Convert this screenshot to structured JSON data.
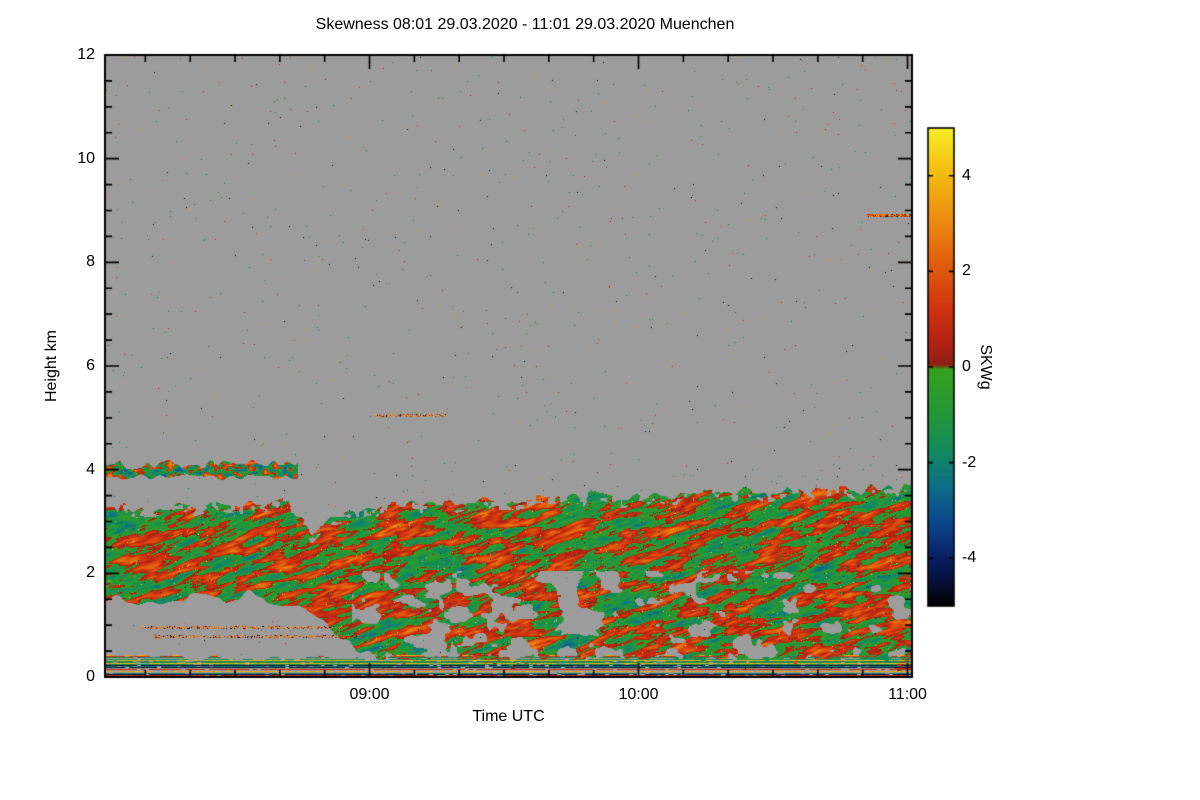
{
  "chart_data": {
    "type": "heatmap",
    "title": "Skewness   08:01 29.03.2020 - 11:01 29.03.2020 Muenchen",
    "xlabel": "Time UTC",
    "ylabel": "Height km",
    "x_start_label": "08:01",
    "x_end_label": "11:01",
    "x_start_minutes": 481,
    "x_end_minutes": 661,
    "x_ticks": [
      {
        "minutes": 540,
        "label": "09:00"
      },
      {
        "minutes": 600,
        "label": "10:00"
      },
      {
        "minutes": 660,
        "label": "11:00"
      }
    ],
    "x_minor_step_minutes": 10,
    "ylim": [
      0,
      12
    ],
    "y_ticks": [
      {
        "value": 0,
        "label": "0"
      },
      {
        "value": 2,
        "label": "2"
      },
      {
        "value": 4,
        "label": "4"
      },
      {
        "value": 6,
        "label": "6"
      },
      {
        "value": 8,
        "label": "8"
      },
      {
        "value": 10,
        "label": "10"
      },
      {
        "value": 12,
        "label": "12"
      }
    ],
    "y_minor_step": 0.5,
    "grid": false,
    "no_data_color": "#9c9c9c",
    "frame_color": "#000000",
    "colorbar": {
      "label": "SKWg",
      "vmin": -5,
      "vmax": 5,
      "ticks": [
        {
          "value": 4,
          "label": "4"
        },
        {
          "value": 2,
          "label": "2"
        },
        {
          "value": 0,
          "label": "0"
        },
        {
          "value": -2,
          "label": "-2"
        },
        {
          "value": -4,
          "label": "-4"
        }
      ],
      "stops": [
        [
          -5.0,
          "#000000"
        ],
        [
          -4.5,
          "#061038"
        ],
        [
          -4.0,
          "#0a1f62"
        ],
        [
          -3.2,
          "#0c4a8c"
        ],
        [
          -2.5,
          "#0e6e86"
        ],
        [
          -1.8,
          "#128a62"
        ],
        [
          -1.0,
          "#23963a"
        ],
        [
          -0.05,
          "#36a01e"
        ],
        [
          0.05,
          "#8e1f12"
        ],
        [
          0.5,
          "#b22315"
        ],
        [
          1.2,
          "#d03410"
        ],
        [
          2.2,
          "#e2600d"
        ],
        [
          3.2,
          "#ee9311"
        ],
        [
          4.2,
          "#f4c413"
        ],
        [
          5.0,
          "#f6ef25"
        ]
      ]
    },
    "field": {
      "seed": 7,
      "speckle_density": 0.0022,
      "main_layer": {
        "top_profile": [
          [
            481,
            3.3
          ],
          [
            495,
            3.25
          ],
          [
            510,
            3.3
          ],
          [
            522,
            3.35
          ],
          [
            527,
            2.75
          ],
          [
            531,
            3.0
          ],
          [
            540,
            3.3
          ],
          [
            555,
            3.4
          ],
          [
            570,
            3.45
          ],
          [
            585,
            3.5
          ],
          [
            600,
            3.5
          ],
          [
            615,
            3.55
          ],
          [
            630,
            3.6
          ],
          [
            645,
            3.6
          ],
          [
            661,
            3.65
          ]
        ],
        "bottom_profile": [
          [
            481,
            1.45
          ],
          [
            500,
            1.5
          ],
          [
            515,
            1.55
          ],
          [
            524,
            1.45
          ],
          [
            528,
            1.2
          ],
          [
            534,
            0.7
          ],
          [
            542,
            0.45
          ],
          [
            552,
            0.25
          ],
          [
            565,
            0.35
          ],
          [
            580,
            0.25
          ],
          [
            600,
            0.3
          ],
          [
            620,
            0.35
          ],
          [
            640,
            0.3
          ],
          [
            661,
            0.25
          ]
        ],
        "gap_below_km": 2.05,
        "streak_shear": 2.0
      },
      "thin_layer": {
        "t0": 481,
        "t1": 524,
        "base": 3.85,
        "top": 4.1
      },
      "surface_band": {
        "top_km": 0.38
      },
      "dashes": [
        {
          "t0": 651,
          "t1": 661,
          "km": 8.9,
          "sparse": false
        },
        {
          "t0": 541,
          "t1": 557,
          "km": 5.05,
          "sparse": true
        },
        {
          "t0": 489,
          "t1": 534,
          "km": 0.95,
          "sparse": true
        },
        {
          "t0": 492,
          "t1": 538,
          "km": 0.78,
          "sparse": true
        }
      ]
    }
  }
}
